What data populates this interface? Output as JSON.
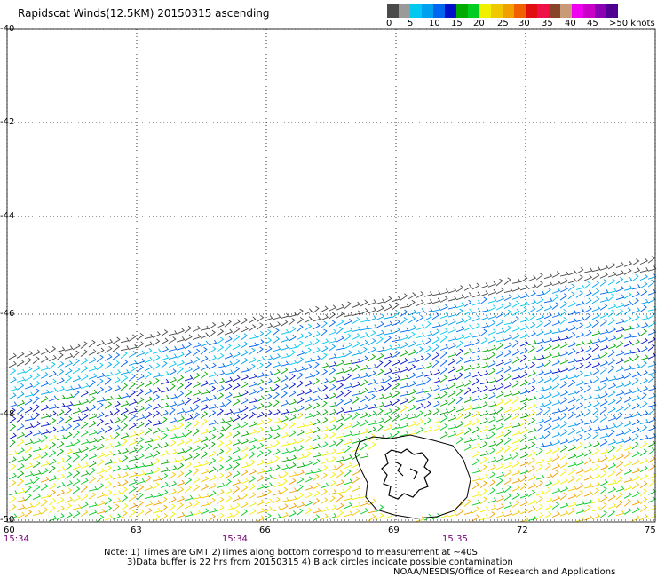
{
  "title": "Rapidscat Winds(12.5KM) 20150315 ascending",
  "colorbar": {
    "colors": [
      "#4a4a4a",
      "#9a9a9a",
      "#00c8f0",
      "#00a0f0",
      "#0066f0",
      "#0010c8",
      "#00aa00",
      "#00cc22",
      "#f0f000",
      "#f0c800",
      "#f0a000",
      "#f06000",
      "#e01010",
      "#f01048",
      "#884428",
      "#c89a78",
      "#f000f0",
      "#c800c8",
      "#8c00b4",
      "#500090"
    ],
    "labels": [
      "0",
      "5",
      "10",
      "15",
      "20",
      "25",
      "30",
      "35",
      "40",
      "45",
      ">50 knots"
    ]
  },
  "y_axis": {
    "labels": [
      "-40",
      "-42",
      "-44",
      "-46",
      "-48",
      "-50"
    ],
    "values": [
      -40,
      -42,
      -44,
      -46,
      -48,
      -50
    ]
  },
  "x_axis": {
    "labels": [
      "60",
      "63",
      "66",
      "69",
      "72",
      "75"
    ],
    "values": [
      60,
      63,
      66,
      69,
      72,
      75
    ]
  },
  "times": [
    "15:34",
    "15:34",
    "15:35"
  ],
  "footer": {
    "note1": "Note: 1) Times are GMT 2)Times along bottom correspond to measurement at ~40S",
    "note2": "3)Data buffer is 22 hrs from 20150315 4) Black circles indicate possible contamination",
    "credit": "NOAA/NESDIS/Office of Research and Applications"
  }
}
